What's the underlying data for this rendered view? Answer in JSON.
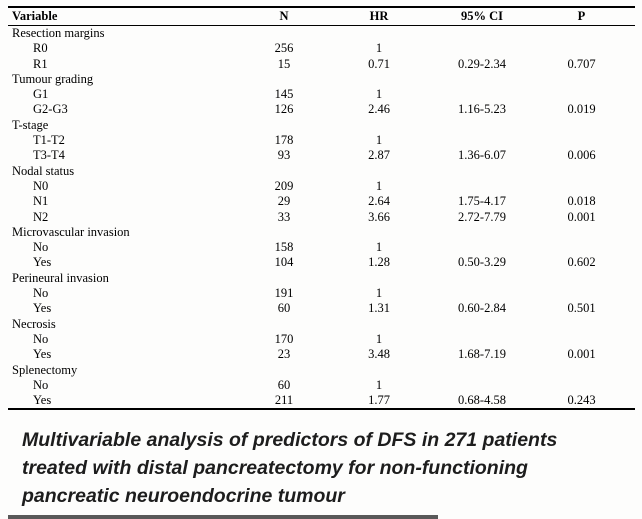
{
  "table": {
    "columns": [
      "Variable",
      "N",
      "HR",
      "95% CI",
      "P"
    ],
    "groups": [
      {
        "label": "Resection margins",
        "rows": [
          {
            "variable": "R0",
            "n": "256",
            "hr": "1",
            "ci": "",
            "p": ""
          },
          {
            "variable": "R1",
            "n": "15",
            "hr": "0.71",
            "ci": "0.29-2.34",
            "p": "0.707"
          }
        ]
      },
      {
        "label": "Tumour grading",
        "rows": [
          {
            "variable": "G1",
            "n": "145",
            "hr": "1",
            "ci": "",
            "p": ""
          },
          {
            "variable": "G2-G3",
            "n": "126",
            "hr": "2.46",
            "ci": "1.16-5.23",
            "p": "0.019"
          }
        ]
      },
      {
        "label": "T-stage",
        "rows": [
          {
            "variable": "T1-T2",
            "n": "178",
            "hr": "1",
            "ci": "",
            "p": ""
          },
          {
            "variable": "T3-T4",
            "n": "93",
            "hr": "2.87",
            "ci": "1.36-6.07",
            "p": "0.006"
          }
        ]
      },
      {
        "label": "Nodal status",
        "rows": [
          {
            "variable": "N0",
            "n": "209",
            "hr": "1",
            "ci": "",
            "p": ""
          },
          {
            "variable": "N1",
            "n": "29",
            "hr": "2.64",
            "ci": "1.75-4.17",
            "p": "0.018"
          },
          {
            "variable": "N2",
            "n": "33",
            "hr": "3.66",
            "ci": "2.72-7.79",
            "p": "0.001"
          }
        ]
      },
      {
        "label": "Microvascular invasion",
        "rows": [
          {
            "variable": "No",
            "n": "158",
            "hr": "1",
            "ci": "",
            "p": ""
          },
          {
            "variable": "Yes",
            "n": "104",
            "hr": "1.28",
            "ci": "0.50-3.29",
            "p": "0.602"
          }
        ]
      },
      {
        "label": "Perineural invasion",
        "rows": [
          {
            "variable": "No",
            "n": "191",
            "hr": "1",
            "ci": "",
            "p": ""
          },
          {
            "variable": "Yes",
            "n": "60",
            "hr": "1.31",
            "ci": "0.60-2.84",
            "p": "0.501"
          }
        ]
      },
      {
        "label": "Necrosis",
        "rows": [
          {
            "variable": "No",
            "n": "170",
            "hr": "1",
            "ci": "",
            "p": ""
          },
          {
            "variable": "Yes",
            "n": "23",
            "hr": "3.48",
            "ci": "1.68-7.19",
            "p": "0.001"
          }
        ]
      },
      {
        "label": "Splenectomy",
        "rows": [
          {
            "variable": "No",
            "n": "60",
            "hr": "1",
            "ci": "",
            "p": ""
          },
          {
            "variable": "Yes",
            "n": "211",
            "hr": "1.77",
            "ci": "0.68-4.58",
            "p": "0.243"
          }
        ]
      }
    ]
  },
  "caption": {
    "lines": [
      "Multivariable analysis of predictors of DFS in 271 patients",
      "treated with distal pancreatectomy for non-functioning",
      "pancreatic neuroendocrine tumour"
    ]
  },
  "colors": {
    "text": "#000000",
    "caption_text": "#1d1d1d",
    "background": "#fdfdfc",
    "rule": "#000000",
    "bottom_bar": "#595959"
  }
}
